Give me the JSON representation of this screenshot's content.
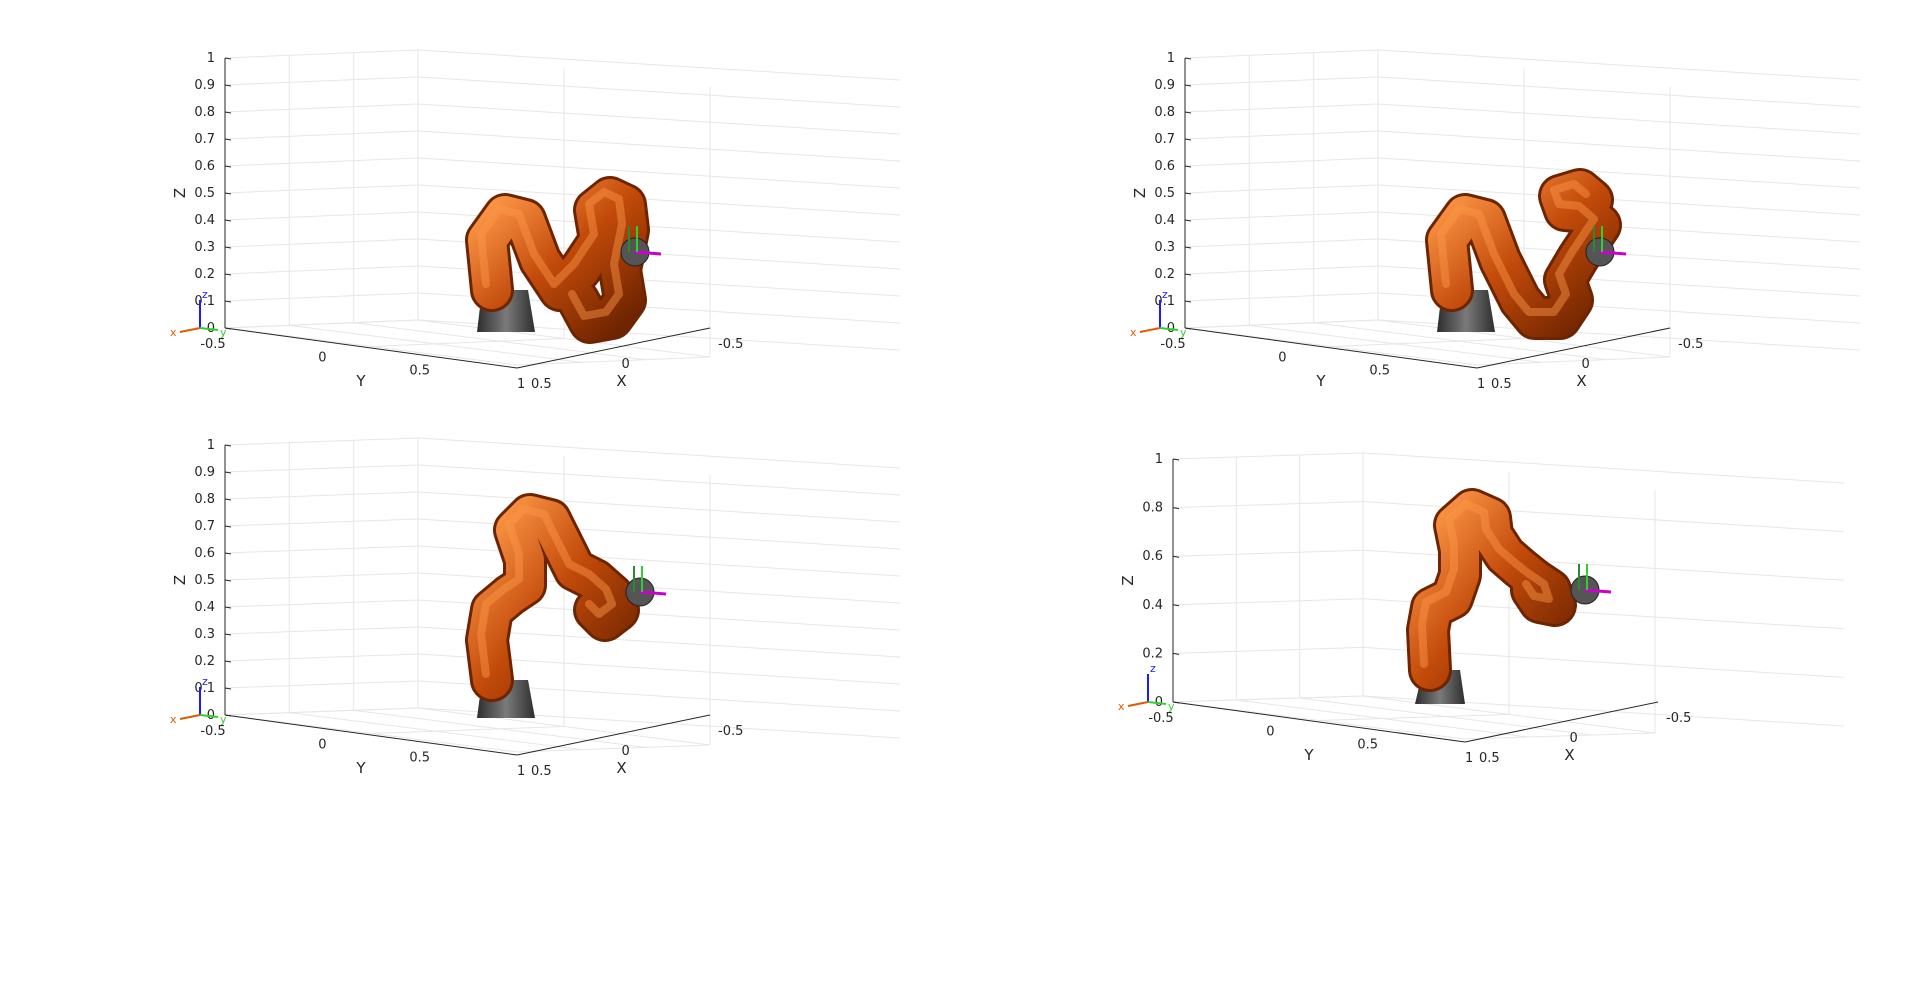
{
  "figure": {
    "panels": [
      {
        "id": "top-left",
        "chart_data": {
          "type": "3d-axes",
          "xlabel": "X",
          "ylabel": "Y",
          "zlabel": "Z",
          "xlim": [
            -0.5,
            0.5
          ],
          "ylim": [
            -0.5,
            1
          ],
          "zlim": [
            0,
            1
          ],
          "x_ticks": [
            "-0.5",
            "0",
            "0.5"
          ],
          "y_ticks": [
            "-0.5",
            "0",
            "0.5",
            "1"
          ],
          "z_ticks": [
            "0",
            "0.1",
            "0.2",
            "0.3",
            "0.4",
            "0.5",
            "0.6",
            "0.7",
            "0.8",
            "0.9",
            "1"
          ],
          "grid": true,
          "robot_pose": "pose-1"
        }
      },
      {
        "id": "top-right",
        "chart_data": {
          "type": "3d-axes",
          "xlabel": "X",
          "ylabel": "Y",
          "zlabel": "Z",
          "xlim": [
            -0.5,
            0.5
          ],
          "ylim": [
            -0.5,
            1
          ],
          "zlim": [
            0,
            1
          ],
          "x_ticks": [
            "-0.5",
            "0",
            "0.5"
          ],
          "y_ticks": [
            "-0.5",
            "0",
            "0.5",
            "1"
          ],
          "z_ticks": [
            "0",
            "0.1",
            "0.2",
            "0.3",
            "0.4",
            "0.5",
            "0.6",
            "0.7",
            "0.8",
            "0.9",
            "1"
          ],
          "grid": true,
          "robot_pose": "pose-2"
        }
      },
      {
        "id": "bottom-left",
        "chart_data": {
          "type": "3d-axes",
          "xlabel": "X",
          "ylabel": "Y",
          "zlabel": "Z",
          "xlim": [
            -0.5,
            0.5
          ],
          "ylim": [
            -0.5,
            1
          ],
          "zlim": [
            0,
            1
          ],
          "x_ticks": [
            "-0.5",
            "0",
            "0.5"
          ],
          "y_ticks": [
            "-0.5",
            "0",
            "0.5",
            "1"
          ],
          "z_ticks": [
            "0",
            "0.1",
            "0.2",
            "0.3",
            "0.4",
            "0.5",
            "0.6",
            "0.7",
            "0.8",
            "0.9",
            "1"
          ],
          "grid": true,
          "robot_pose": "pose-3"
        }
      },
      {
        "id": "bottom-right",
        "chart_data": {
          "type": "3d-axes",
          "xlabel": "X",
          "ylabel": "Y",
          "zlabel": "Z",
          "xlim": [
            -0.5,
            0.5
          ],
          "ylim": [
            -0.5,
            1
          ],
          "zlim": [
            0,
            1
          ],
          "x_ticks": [
            "-0.5",
            "0",
            "0.5"
          ],
          "y_ticks": [
            "-0.5",
            "0",
            "0.5",
            "1"
          ],
          "z_ticks": [
            "0",
            "0.2",
            "0.4",
            "0.6",
            "0.8",
            "1"
          ],
          "grid": true,
          "robot_pose": "pose-4"
        }
      }
    ],
    "triad_labels": {
      "x": "x",
      "y": "y",
      "z": "z"
    },
    "colors": {
      "robot_link": "#c24a0a",
      "robot_highlight": "#ff9a4a",
      "robot_shadow": "#6e2400",
      "base": "#4a4a4a",
      "axis_line": "#262626",
      "grid": "#e6e6e6",
      "triad_x": "#e05a00",
      "triad_y": "#33cc33",
      "triad_z": "#1a1aff",
      "end_effector": "#cc00cc"
    }
  }
}
